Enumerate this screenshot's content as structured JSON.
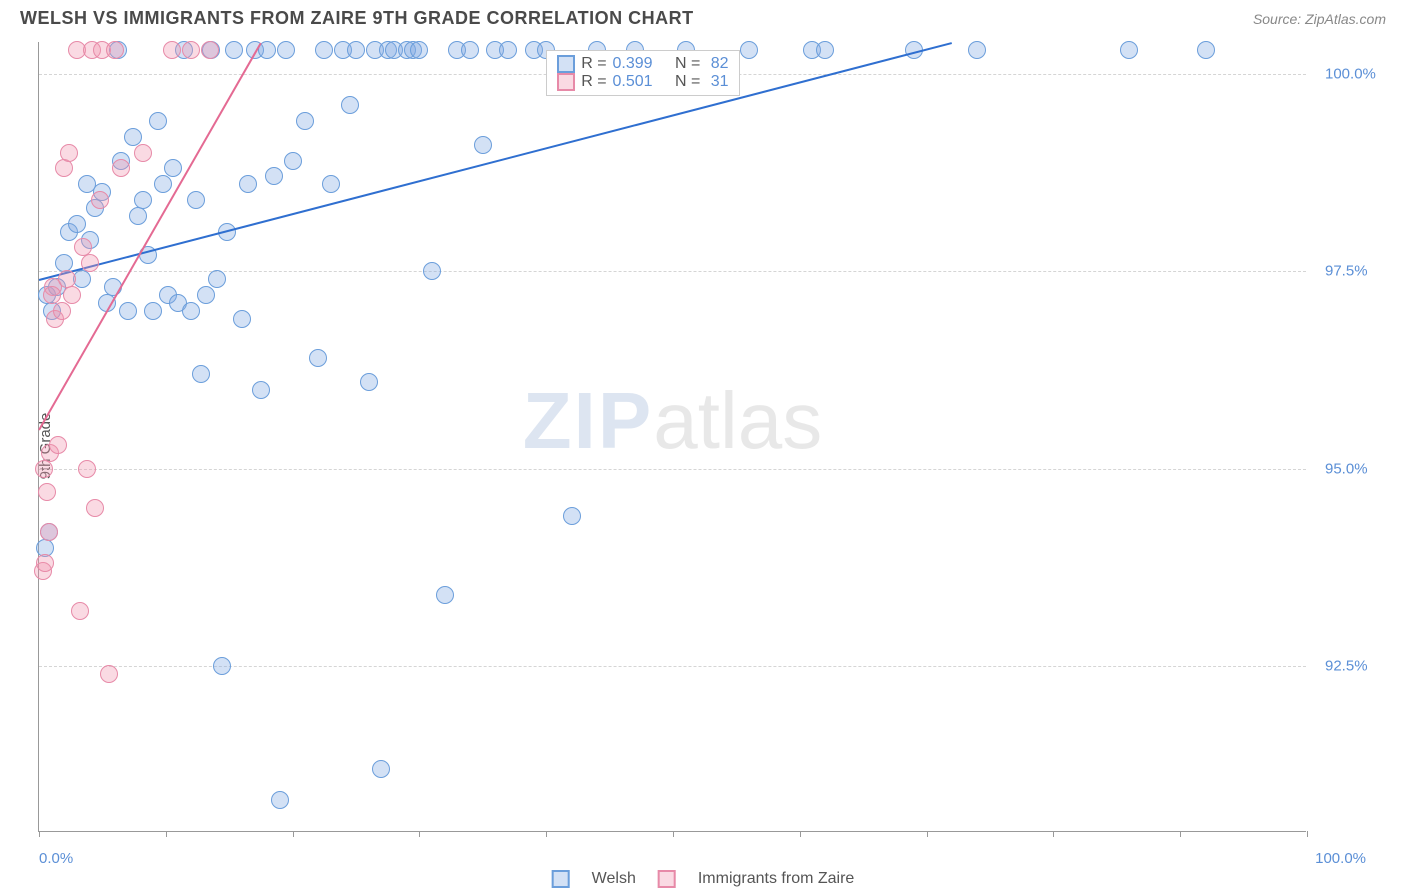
{
  "header": {
    "title": "WELSH VS IMMIGRANTS FROM ZAIRE 9TH GRADE CORRELATION CHART",
    "source": "Source: ZipAtlas.com"
  },
  "chart": {
    "type": "scatter",
    "y_axis_title": "9th Grade",
    "background_color": "#ffffff",
    "grid_color": "#d5d5d5",
    "axis_color": "#999999",
    "text_color": "#555555",
    "value_color": "#5b8fd6",
    "xlim": [
      0,
      100
    ],
    "ylim": [
      90.4,
      100.4
    ],
    "x_axis_labels": {
      "min": "0.0%",
      "max": "100.0%"
    },
    "y_ticks": [
      {
        "v": 92.5,
        "label": "92.5%"
      },
      {
        "v": 95.0,
        "label": "95.0%"
      },
      {
        "v": 97.5,
        "label": "97.5%"
      },
      {
        "v": 100.0,
        "label": "100.0%"
      }
    ],
    "x_tick_positions": [
      0,
      10,
      20,
      30,
      40,
      50,
      60,
      70,
      80,
      90,
      100
    ],
    "marker_radius": 9,
    "marker_border_width": 1.5,
    "trend_line_width": 2,
    "series": [
      {
        "name": "Welsh",
        "fill": "rgba(130,170,225,0.35)",
        "stroke": "#6b9edb",
        "line_color": "#2f6fd0",
        "R": "0.399",
        "N": "82",
        "trend": {
          "x1": 0,
          "y1": 97.4,
          "x2": 72,
          "y2": 100.4
        },
        "points": [
          [
            0.5,
            94.0
          ],
          [
            0.8,
            94.2
          ],
          [
            0.6,
            97.2
          ],
          [
            1.0,
            97.0
          ],
          [
            1.4,
            97.3
          ],
          [
            2.0,
            97.6
          ],
          [
            2.4,
            98.0
          ],
          [
            3.0,
            98.1
          ],
          [
            3.4,
            97.4
          ],
          [
            3.8,
            98.6
          ],
          [
            4.0,
            97.9
          ],
          [
            4.4,
            98.3
          ],
          [
            5.0,
            98.5
          ],
          [
            5.4,
            97.1
          ],
          [
            5.8,
            97.3
          ],
          [
            6.2,
            100.3
          ],
          [
            6.5,
            98.9
          ],
          [
            7.0,
            97.0
          ],
          [
            7.4,
            99.2
          ],
          [
            7.8,
            98.2
          ],
          [
            8.2,
            98.4
          ],
          [
            8.6,
            97.7
          ],
          [
            9.0,
            97.0
          ],
          [
            9.4,
            99.4
          ],
          [
            9.8,
            98.6
          ],
          [
            10.2,
            97.2
          ],
          [
            10.6,
            98.8
          ],
          [
            11.0,
            97.1
          ],
          [
            11.4,
            100.3
          ],
          [
            12.0,
            97.0
          ],
          [
            12.4,
            98.4
          ],
          [
            12.8,
            96.2
          ],
          [
            13.2,
            97.2
          ],
          [
            13.6,
            100.3
          ],
          [
            14.0,
            97.4
          ],
          [
            14.4,
            92.5
          ],
          [
            14.8,
            98.0
          ],
          [
            15.4,
            100.3
          ],
          [
            16.0,
            96.9
          ],
          [
            16.5,
            98.6
          ],
          [
            17.0,
            100.3
          ],
          [
            17.5,
            96.0
          ],
          [
            18.0,
            100.3
          ],
          [
            18.5,
            98.7
          ],
          [
            19.0,
            90.8
          ],
          [
            19.5,
            100.3
          ],
          [
            20.0,
            98.9
          ],
          [
            21.0,
            99.4
          ],
          [
            22.0,
            96.4
          ],
          [
            22.5,
            100.3
          ],
          [
            23.0,
            98.6
          ],
          [
            24.0,
            100.3
          ],
          [
            24.5,
            99.6
          ],
          [
            25.0,
            100.3
          ],
          [
            26.0,
            96.1
          ],
          [
            26.5,
            100.3
          ],
          [
            27.0,
            91.2
          ],
          [
            27.5,
            100.3
          ],
          [
            28.0,
            100.3
          ],
          [
            29.0,
            100.3
          ],
          [
            29.5,
            100.3
          ],
          [
            30.0,
            100.3
          ],
          [
            31.0,
            97.5
          ],
          [
            32.0,
            93.4
          ],
          [
            33.0,
            100.3
          ],
          [
            34.0,
            100.3
          ],
          [
            35.0,
            99.1
          ],
          [
            36.0,
            100.3
          ],
          [
            37.0,
            100.3
          ],
          [
            39.0,
            100.3
          ],
          [
            40.0,
            100.3
          ],
          [
            42.0,
            94.4
          ],
          [
            44.0,
            100.3
          ],
          [
            47.0,
            100.3
          ],
          [
            51.0,
            100.3
          ],
          [
            56.0,
            100.3
          ],
          [
            61.0,
            100.3
          ],
          [
            62.0,
            100.3
          ],
          [
            69.0,
            100.3
          ],
          [
            74.0,
            100.3
          ],
          [
            86.0,
            100.3
          ],
          [
            92.0,
            100.3
          ]
        ]
      },
      {
        "name": "Immigrants from Zaire",
        "fill": "rgba(240,150,175,0.35)",
        "stroke": "#e78aa8",
        "line_color": "#e46a93",
        "R": "0.501",
        "N": "31",
        "trend": {
          "x1": 0,
          "y1": 95.5,
          "x2": 17.5,
          "y2": 100.4
        },
        "points": [
          [
            0.3,
            93.7
          ],
          [
            0.5,
            93.8
          ],
          [
            0.4,
            95.0
          ],
          [
            0.6,
            94.7
          ],
          [
            0.8,
            94.2
          ],
          [
            0.9,
            95.2
          ],
          [
            1.1,
            97.3
          ],
          [
            1.3,
            96.9
          ],
          [
            1.0,
            97.2
          ],
          [
            1.5,
            95.3
          ],
          [
            1.8,
            97.0
          ],
          [
            2.0,
            98.8
          ],
          [
            2.2,
            97.4
          ],
          [
            2.4,
            99.0
          ],
          [
            2.6,
            97.2
          ],
          [
            3.0,
            100.3
          ],
          [
            3.2,
            93.2
          ],
          [
            3.5,
            97.8
          ],
          [
            3.8,
            95.0
          ],
          [
            4.0,
            97.6
          ],
          [
            4.2,
            100.3
          ],
          [
            4.4,
            94.5
          ],
          [
            4.8,
            98.4
          ],
          [
            5.0,
            100.3
          ],
          [
            5.5,
            92.4
          ],
          [
            6.0,
            100.3
          ],
          [
            6.5,
            98.8
          ],
          [
            8.2,
            99.0
          ],
          [
            10.5,
            100.3
          ],
          [
            12.0,
            100.3
          ],
          [
            13.5,
            100.3
          ]
        ]
      }
    ]
  },
  "watermark": {
    "part1": "ZIP",
    "part2": "atlas"
  },
  "legend_top": {
    "R_label": "R =",
    "N_label": "N ="
  },
  "legend_bottom": {
    "s1": "Welsh",
    "s2": "Immigrants from Zaire"
  }
}
